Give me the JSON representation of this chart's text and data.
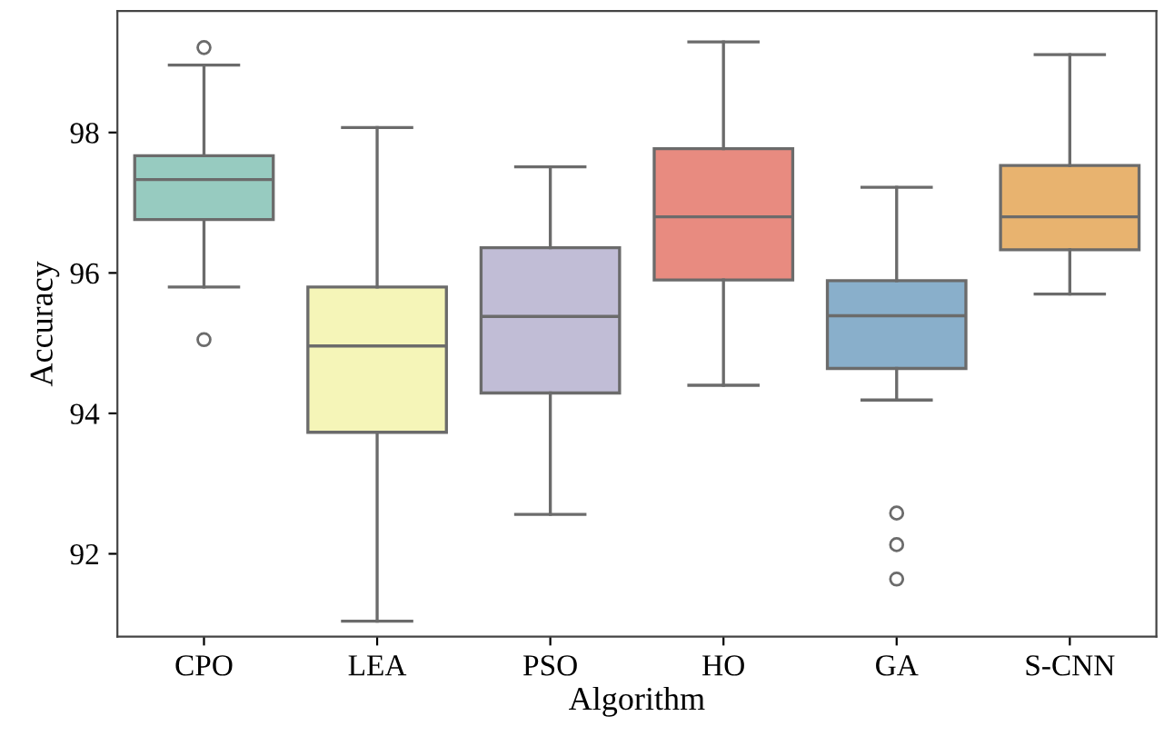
{
  "chart_data": {
    "type": "box",
    "xlabel": "Algorithm",
    "ylabel": "Accuracy",
    "categories": [
      "CPO",
      "LEA",
      "PSO",
      "HO",
      "GA",
      "S-CNN"
    ],
    "colors": [
      "#97cbc0",
      "#f5f5b8",
      "#c1bdd6",
      "#e88b80",
      "#89afcb",
      "#e8b36f"
    ],
    "boxes": [
      {
        "low": 95.8,
        "q1": 96.76,
        "median": 97.33,
        "q3": 97.67,
        "high": 98.96,
        "outliers": [
          99.21,
          95.05
        ]
      },
      {
        "low": 91.04,
        "q1": 93.73,
        "median": 94.96,
        "q3": 95.8,
        "high": 98.07
      },
      {
        "low": 92.56,
        "q1": 94.29,
        "median": 95.38,
        "q3": 96.36,
        "high": 97.51
      },
      {
        "low": 94.4,
        "q1": 95.9,
        "median": 96.8,
        "q3": 97.77,
        "high": 99.29
      },
      {
        "low": 94.19,
        "q1": 94.64,
        "median": 95.39,
        "q3": 95.89,
        "high": 97.22,
        "outliers": [
          92.58,
          92.13,
          91.64
        ]
      },
      {
        "low": 95.7,
        "q1": 96.33,
        "median": 96.8,
        "q3": 97.53,
        "high": 99.11
      }
    ],
    "ylim": [
      90.82,
      99.73
    ],
    "yticks": [
      92,
      94,
      96,
      98
    ],
    "grid": false
  }
}
